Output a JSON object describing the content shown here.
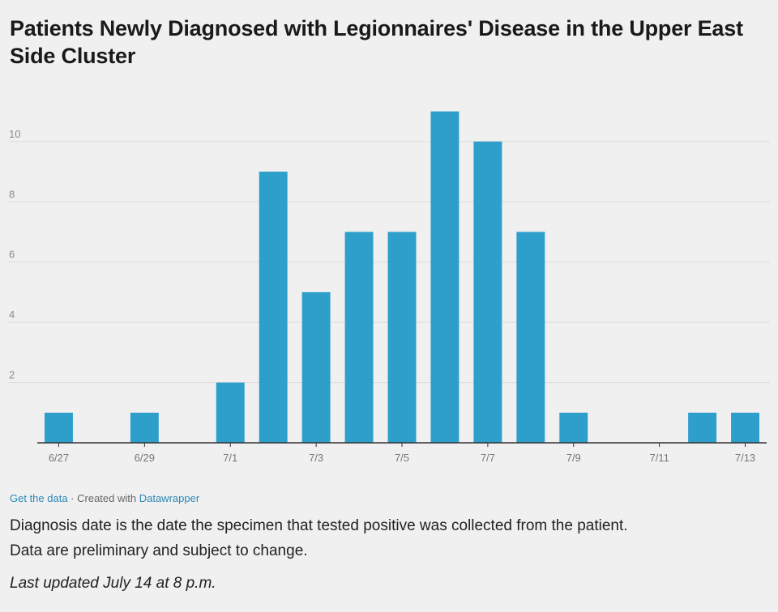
{
  "chart_data": {
    "type": "bar",
    "title": "Patients Newly Diagnosed with Legionnaires' Disease in the Upper East Side Cluster",
    "xlabel": "",
    "ylabel": "",
    "categories": [
      "6/27",
      "6/28",
      "6/29",
      "6/30",
      "7/1",
      "7/2",
      "7/3",
      "7/4",
      "7/5",
      "7/6",
      "7/7",
      "7/8",
      "7/9",
      "7/10",
      "7/11",
      "7/12",
      "7/13"
    ],
    "values": [
      1,
      0,
      1,
      0,
      2,
      9,
      5,
      7,
      7,
      11,
      10,
      7,
      1,
      0,
      0,
      1,
      1
    ],
    "x_tick_labels": [
      "6/27",
      "6/29",
      "7/1",
      "7/3",
      "7/5",
      "7/7",
      "7/9",
      "7/11",
      "7/13"
    ],
    "y_ticks": [
      2,
      4,
      6,
      8,
      10
    ],
    "ylim": [
      0,
      11.5
    ],
    "grid": true,
    "legend": "none",
    "bar_color": "#2e9fcb"
  },
  "footer": {
    "get_data": "Get the data",
    "separator": " · Created with ",
    "datawrapper": "Datawrapper"
  },
  "notes": {
    "line1": "Diagnosis date is the date the specimen that tested positive was collected from the patient.",
    "line2": "Data are preliminary and subject to change."
  },
  "updated": "Last updated July 14 at 8 p.m."
}
